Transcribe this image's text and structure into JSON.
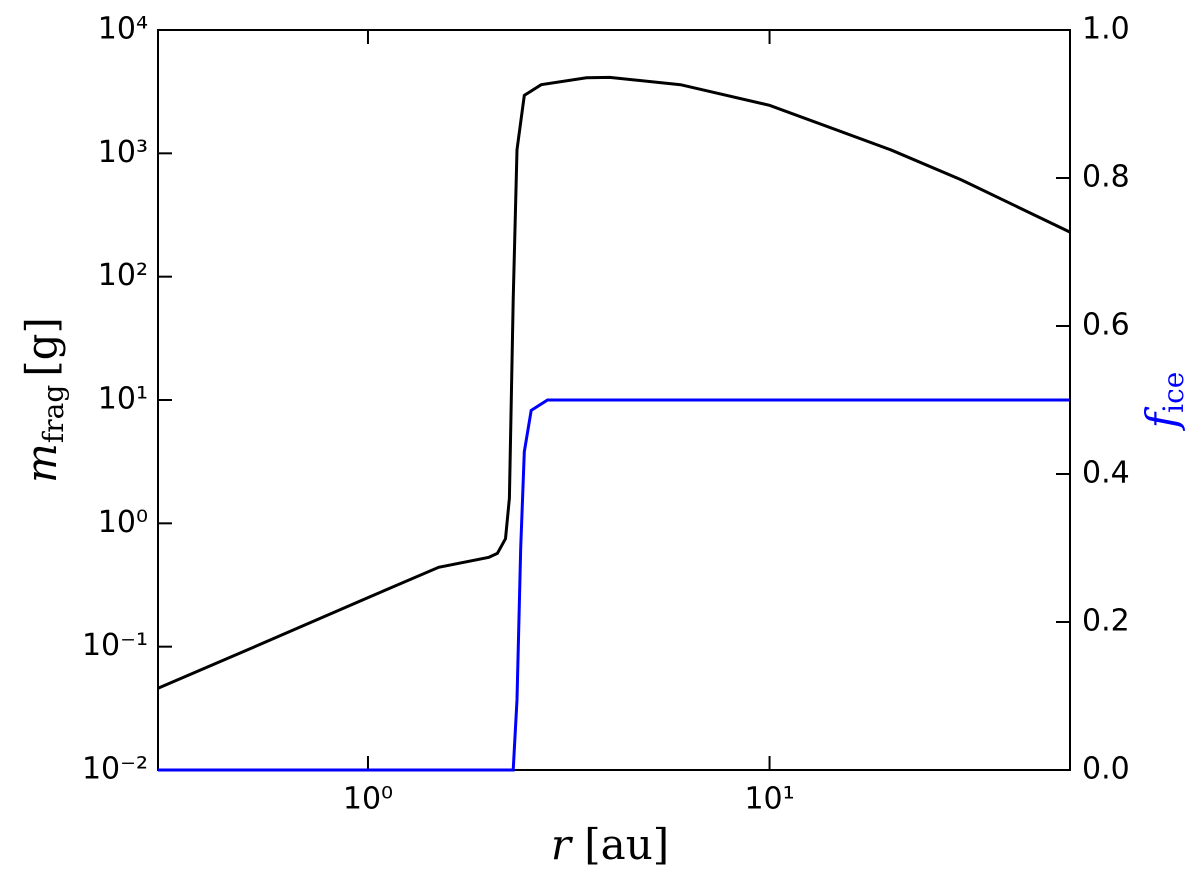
{
  "chart_data": {
    "type": "line",
    "xscale": "log",
    "yscale": "log",
    "xlabel": {
      "symbol": "r",
      "unit": "[au]"
    },
    "ylabel": {
      "symbol": "m",
      "sub": "frag",
      "unit": "[g]"
    },
    "y2label": {
      "symbol": "f",
      "sub": "ice",
      "color": "#0000ff"
    },
    "xlim": [
      0.3,
      56
    ],
    "ylim": [
      0.01,
      10000
    ],
    "y2lim": [
      0,
      1
    ],
    "xticks": [
      {
        "value": 1,
        "label": "10⁰"
      },
      {
        "value": 10,
        "label": "10¹"
      }
    ],
    "yticks": [
      {
        "value": 0.01,
        "label": "10⁻²"
      },
      {
        "value": 0.1,
        "label": "10⁻¹"
      },
      {
        "value": 1,
        "label": "10⁰"
      },
      {
        "value": 10,
        "label": "10¹"
      },
      {
        "value": 100,
        "label": "10²"
      },
      {
        "value": 1000,
        "label": "10³"
      },
      {
        "value": 10000,
        "label": "10⁴"
      }
    ],
    "y2ticks": [
      {
        "value": 0,
        "label": "0.0"
      },
      0.2,
      0.4,
      0.6,
      0.8,
      {
        "value": 1,
        "label": "1.0"
      }
    ],
    "series": [
      {
        "color": "#000000",
        "axis": "y",
        "x": [
          0.3,
          0.5,
          1,
          1.5,
          2.0,
          2.1,
          2.2,
          2.25,
          2.3,
          2.35,
          2.45,
          2.7,
          3.5,
          4,
          6,
          10,
          20,
          30,
          56
        ],
        "values": [
          0.046,
          0.094,
          0.25,
          0.44,
          0.53,
          0.57,
          0.75,
          1.6,
          65,
          1070,
          2950,
          3600,
          4100,
          4130,
          3600,
          2450,
          1070,
          610,
          230
        ]
      },
      {
        "color": "#0000ff",
        "axis": "y2",
        "x": [
          0.3,
          2.3,
          2.35,
          2.4,
          2.45,
          2.55,
          2.8,
          56
        ],
        "values": [
          0,
          0,
          0.095,
          0.3,
          0.43,
          0.486,
          0.5,
          0.5
        ]
      }
    ]
  }
}
